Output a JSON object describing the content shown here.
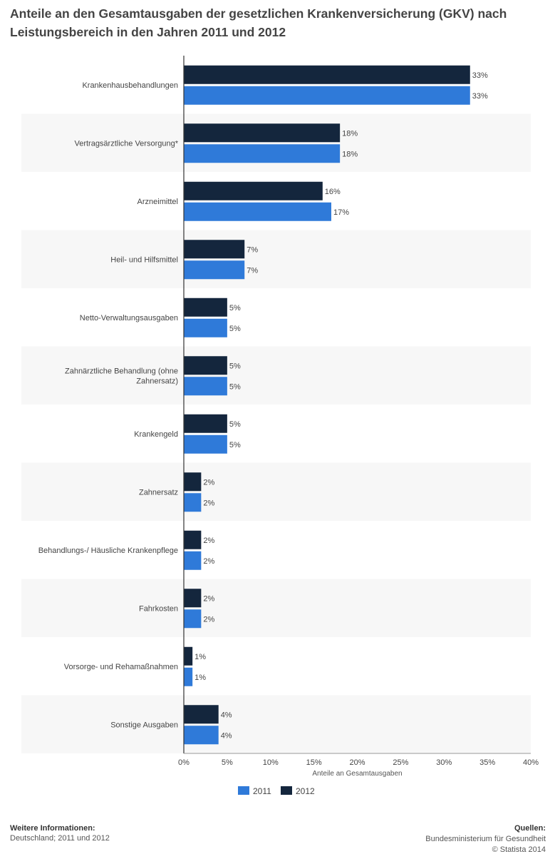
{
  "title": "Anteile an den Gesamtausgaben der gesetzlichen Krankenversicherung (GKV) nach Leistungsbereich in den Jahren 2011 und 2012",
  "footer": {
    "left_heading": "Weitere Informationen:",
    "left_text": "Deutschland; 2011 und 2012",
    "right_heading": "Quellen:",
    "right_source": "Bundesministerium für Gesundheit",
    "right_copyright": "© Statista 2014"
  },
  "colors": {
    "s2011": "#2f7ad9",
    "s2012": "#14263d",
    "band": "#f7f7f7",
    "axis": "#333333"
  },
  "chart_data": {
    "type": "bar",
    "orientation": "horizontal",
    "categories": [
      "Krankenhausbehandlungen",
      "Vertragsärztliche Versorgung*",
      "Arzneimittel",
      "Heil- und Hilfsmittel",
      "Netto-Verwaltungsausgaben",
      "Zahnärztliche Behandlung (ohne Zahnersatz)",
      "Krankengeld",
      "Zahnersatz",
      "Behandlungs-/ Häusliche Krankenpflege",
      "Fahrkosten",
      "Vorsorge- und Rehamaßnahmen",
      "Sonstige Ausgaben"
    ],
    "series": [
      {
        "name": "2012",
        "values": [
          33,
          18,
          16,
          7,
          5,
          5,
          5,
          2,
          2,
          2,
          1,
          4
        ],
        "labels": [
          "33%",
          "18%",
          "16%",
          "7%",
          "5%",
          "5%",
          "5%",
          "2%",
          "2%",
          "2%",
          "1%",
          "4%"
        ]
      },
      {
        "name": "2011",
        "values": [
          33,
          18,
          17,
          7,
          5,
          5,
          5,
          2,
          2,
          2,
          1,
          4
        ],
        "labels": [
          "33%",
          "18%",
          "17%",
          "7%",
          "5%",
          "5%",
          "5%",
          "2%",
          "2%",
          "2%",
          "1%",
          "4%"
        ]
      }
    ],
    "xlabel": "Anteile an Gesamtausgaben",
    "xlim": [
      0,
      40
    ],
    "xticks": [
      0,
      5,
      10,
      15,
      20,
      25,
      30,
      35,
      40
    ],
    "xtick_labels": [
      "0%",
      "5%",
      "10%",
      "15%",
      "20%",
      "25%",
      "30%",
      "35%",
      "40%"
    ],
    "legend": [
      {
        "name": "2011",
        "color": "#2f7ad9"
      },
      {
        "name": "2012",
        "color": "#14263d"
      }
    ],
    "legend_position": "bottom"
  }
}
